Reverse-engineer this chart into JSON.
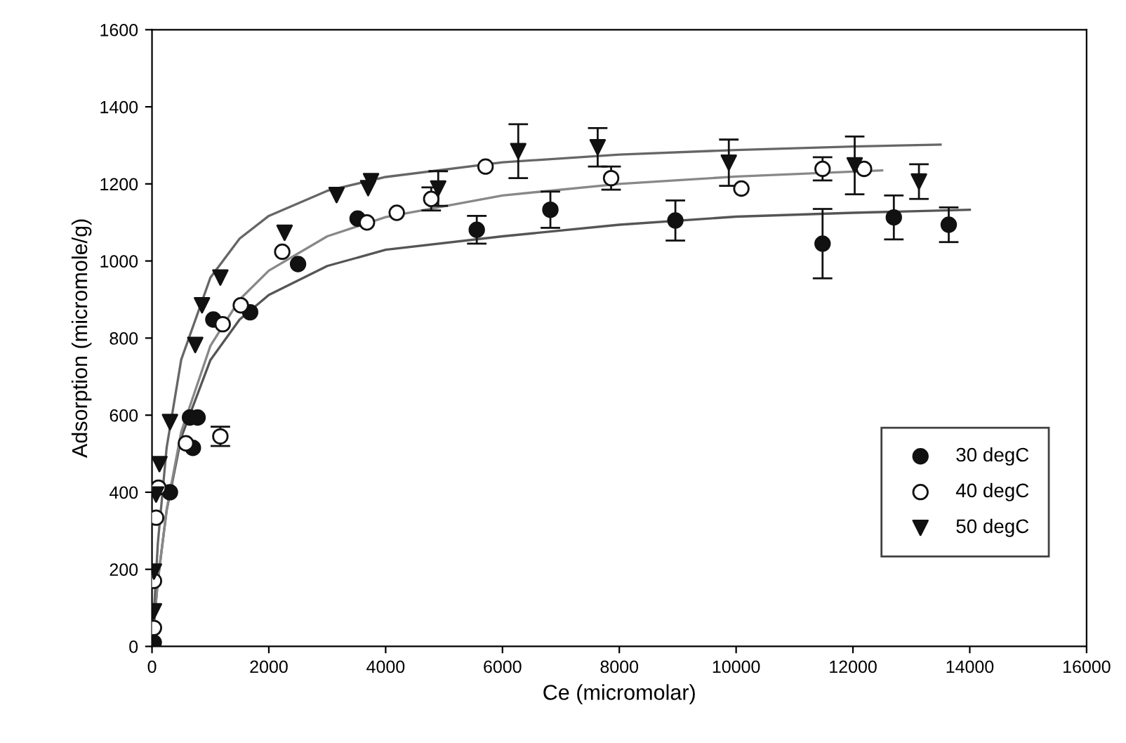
{
  "chart_data": {
    "type": "scatter",
    "xlabel": "Ce (micromolar)",
    "ylabel": "Adsorption (micromole/g)",
    "xlim": [
      0,
      16000
    ],
    "ylim": [
      0,
      1600
    ],
    "xticks": [
      0,
      2000,
      4000,
      6000,
      8000,
      10000,
      12000,
      14000,
      16000
    ],
    "yticks": [
      0,
      200,
      400,
      600,
      800,
      1000,
      1200,
      1400,
      1600
    ],
    "grid": false,
    "legend": "bottom right",
    "series": [
      {
        "name": "30 degC",
        "marker": "circle",
        "color": "#111111",
        "x": [
          30,
          307,
          650,
          700,
          780,
          1050,
          1680,
          2500,
          3520,
          5560,
          6820,
          8960,
          11480,
          12700,
          13640
        ],
        "values": [
          10,
          400,
          594,
          515,
          594,
          848,
          867,
          992,
          1110,
          1081,
          1133,
          1105,
          1045,
          1113,
          1094
        ],
        "errors": [
          null,
          null,
          null,
          null,
          null,
          null,
          null,
          null,
          null,
          36,
          47,
          52,
          90,
          57,
          45
        ]
      },
      {
        "name": "40 degC",
        "marker": "circle",
        "color": "#ffffff",
        "x": [
          33,
          33,
          70,
          110,
          580,
          1170,
          1210,
          1520,
          2230,
          3680,
          4190,
          4780,
          5710,
          7860,
          10090,
          11480,
          12190
        ],
        "values": [
          48,
          170,
          334,
          412,
          527,
          545,
          836,
          885,
          1024,
          1100,
          1125,
          1161,
          1245,
          1215,
          1188,
          1239,
          1239
        ],
        "errors": [
          null,
          null,
          null,
          null,
          null,
          25,
          null,
          null,
          null,
          null,
          null,
          30,
          null,
          30,
          null,
          30,
          null
        ]
      },
      {
        "name": "50 degC",
        "marker": "triangle",
        "color": "#111111",
        "x": [
          33,
          33,
          70,
          127,
          308,
          740,
          856,
          1170,
          2270,
          3160,
          3700,
          3750,
          4900,
          6270,
          7630,
          9875,
          12030,
          13130
        ],
        "values": [
          91,
          194,
          394,
          473,
          582,
          782,
          885,
          957,
          1073,
          1171,
          1189,
          1207,
          1188,
          1285,
          1295,
          1255,
          1248,
          1206
        ],
        "errors": [
          null,
          null,
          null,
          null,
          null,
          null,
          null,
          null,
          null,
          null,
          null,
          null,
          45,
          70,
          50,
          60,
          75,
          45
        ]
      },
      {
        "type": "line",
        "color": "#555555",
        "x": [
          0,
          100,
          250,
          500,
          1000,
          1500,
          2000,
          3000,
          4000,
          6000,
          8000,
          10000,
          12000,
          14000
        ],
        "values": [
          0,
          171,
          352,
          542,
          743,
          848,
          912,
          987,
          1029,
          1064,
          1094,
          1115,
          1125,
          1133
        ]
      },
      {
        "type": "line",
        "color": "#888888",
        "x": [
          0,
          100,
          250,
          500,
          1000,
          1500,
          2000,
          3000,
          4000,
          6000,
          8000,
          10000,
          12000,
          12500
        ],
        "values": [
          0,
          170,
          355,
          557,
          780,
          900,
          975,
          1064,
          1114,
          1170,
          1200,
          1219,
          1232,
          1235
        ]
      },
      {
        "type": "line",
        "color": "#666666",
        "x": [
          0,
          100,
          250,
          500,
          1000,
          1500,
          2000,
          3000,
          4000,
          6000,
          8000,
          10000,
          12000,
          13500
        ],
        "values": [
          0,
          268,
          515,
          744,
          957,
          1058,
          1117,
          1182,
          1218,
          1256,
          1276,
          1288,
          1297,
          1302
        ]
      }
    ]
  }
}
